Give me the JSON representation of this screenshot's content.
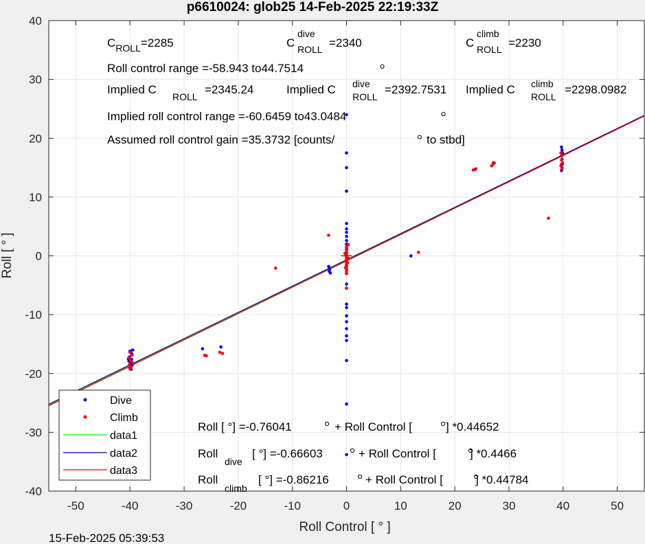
{
  "footer": {
    "timestamp": "15-Feb-2025 05:39:53"
  },
  "chart_data": {
    "type": "scatter",
    "title": "p6610024: glob25 14-Feb-2025 22:19:33Z",
    "xlabel": "Roll Control [ ° ]",
    "ylabel": "Roll [ ° ]",
    "xlim": [
      -55,
      55
    ],
    "ylim": [
      -40,
      40
    ],
    "xticks": [
      -50,
      -40,
      -30,
      -20,
      -10,
      0,
      10,
      20,
      30,
      40,
      50
    ],
    "yticks": [
      -40,
      -30,
      -20,
      -10,
      0,
      10,
      20,
      30,
      40
    ],
    "grid": true,
    "legend_placement": "bottom-left",
    "colors": {
      "dive": "#0000ff",
      "climb": "#ff0000",
      "data1": "#00ff00",
      "data2": "#0000aa",
      "data3": "#ff0000"
    },
    "annotations": {
      "c_roll": {
        "base": "C",
        "sub": "ROLL",
        "value": "=2285"
      },
      "c_roll_dive": {
        "base": "C",
        "sup": "dive",
        "sub": "ROLL",
        "value": "=2340"
      },
      "c_roll_climb": {
        "base": "C",
        "sup": "climb",
        "sub": "ROLL",
        "value": "=2230"
      },
      "roll_control_range": "Roll control range =-58.943 to44.7514",
      "implied_c_roll": {
        "prefix": "Implied C",
        "sub": "ROLL",
        "value": "=2345.24"
      },
      "implied_c_roll_dive": {
        "prefix": "Implied C",
        "sup": "dive",
        "sub": "ROLL",
        "value": "=2392.7531"
      },
      "implied_c_roll_climb": {
        "prefix": "Implied C",
        "sup": "climb",
        "sub": "ROLL",
        "value": "=2298.0982"
      },
      "implied_range": "Implied roll control range =-60.6459 to43.0484",
      "gain": {
        "text": "Assumed roll control gain =35.3732 [counts/",
        "tail": "to stbd]"
      },
      "fit_all": {
        "a": "Roll [ °] =-0.76041",
        "b": "+ Roll Control [",
        "c": "] *0.44652"
      },
      "fit_dive": {
        "a": "Roll",
        "sub": "dive",
        "b": "[ °] =-0.66603",
        "c": "+ Roll Control [",
        "d": "] *0.4466"
      },
      "fit_climb": {
        "a": "Roll",
        "sub": "climb",
        "b": "[ °] =-0.86216",
        "c": "+ Roll Control [",
        "d": "] *0.44784"
      }
    },
    "series": [
      {
        "name": "Dive",
        "kind": "points",
        "color": "#0000ff",
        "points": [
          [
            -40,
            -16.2
          ],
          [
            -39.8,
            -16.5
          ],
          [
            -39.6,
            -16.8
          ],
          [
            -40.1,
            -17.2
          ],
          [
            -39.7,
            -17.6
          ],
          [
            -40.2,
            -17.9
          ],
          [
            -39.9,
            -18.2
          ],
          [
            -39.6,
            -18.6
          ],
          [
            -40,
            -19
          ],
          [
            -39.8,
            -19.3
          ],
          [
            -39.5,
            -16
          ],
          [
            -40.3,
            -17.5
          ],
          [
            -26.6,
            -15.8
          ],
          [
            -23.2,
            -15.5
          ],
          [
            -3.3,
            -1.8
          ],
          [
            -3.1,
            -2.2
          ],
          [
            -3.2,
            -2.6
          ],
          [
            -3,
            -2.9
          ],
          [
            0,
            24
          ],
          [
            0,
            17.5
          ],
          [
            0,
            15
          ],
          [
            0,
            11
          ],
          [
            0,
            5.5
          ],
          [
            0,
            4.6
          ],
          [
            0,
            4.0
          ],
          [
            0,
            3.3
          ],
          [
            0,
            2.6
          ],
          [
            0,
            2.0
          ],
          [
            0,
            1.2
          ],
          [
            0,
            0.5
          ],
          [
            0,
            -0.3
          ],
          [
            0,
            -1.0
          ],
          [
            0,
            -1.6
          ],
          [
            0,
            -2.2
          ],
          [
            0,
            -3.0
          ],
          [
            0,
            -4.8
          ],
          [
            0,
            -5.5
          ],
          [
            0,
            -8.2
          ],
          [
            0,
            -8.8
          ],
          [
            0,
            -10.2
          ],
          [
            0,
            -11.2
          ],
          [
            0,
            -12.4
          ],
          [
            0,
            -13.6
          ],
          [
            0,
            -14.4
          ],
          [
            0,
            -17.8
          ],
          [
            0,
            -25.2
          ],
          [
            0,
            -33.8
          ],
          [
            11.9,
            0
          ],
          [
            39.7,
            18.5
          ],
          [
            39.8,
            18.0
          ],
          [
            39.9,
            17.5
          ],
          [
            39.7,
            17.0
          ],
          [
            39.8,
            16.4
          ],
          [
            39.9,
            15.6
          ],
          [
            39.8,
            15.0
          ],
          [
            39.7,
            14.5
          ],
          [
            23.7,
            14.7
          ],
          [
            27.1,
            15.8
          ]
        ]
      },
      {
        "name": "Climb",
        "kind": "points",
        "color": "#ff0000",
        "points": [
          [
            -40,
            -16.4
          ],
          [
            -39.7,
            -16.9
          ],
          [
            -40.2,
            -17.3
          ],
          [
            -39.9,
            -17.8
          ],
          [
            -39.6,
            -18.1
          ],
          [
            -40.1,
            -18.5
          ],
          [
            -39.8,
            -18.9
          ],
          [
            -40,
            -19.2
          ],
          [
            -26.2,
            -16.9
          ],
          [
            -25.9,
            -17.0
          ],
          [
            -23.4,
            -16.4
          ],
          [
            -22.9,
            -16.6
          ],
          [
            -13.1,
            -2.1
          ],
          [
            -3.3,
            3.5
          ],
          [
            0,
            1.5
          ],
          [
            0,
            1.0
          ],
          [
            0,
            0.6
          ],
          [
            0,
            0.2
          ],
          [
            0,
            -0.2
          ],
          [
            0,
            -0.6
          ],
          [
            0,
            -1.0
          ],
          [
            0,
            -1.4
          ],
          [
            0,
            -1.8
          ],
          [
            0,
            -2.2
          ],
          [
            0,
            -2.6
          ],
          [
            0,
            -3.0
          ],
          [
            0,
            -5.5
          ],
          [
            0.3,
            -0.4
          ],
          [
            -0.3,
            0.4
          ],
          [
            0.2,
            -1.2
          ],
          [
            -0.2,
            -2.0
          ],
          [
            0.3,
            1.9
          ],
          [
            13.3,
            0.6
          ],
          [
            23.4,
            14.6
          ],
          [
            23.9,
            14.8
          ],
          [
            26.8,
            15.3
          ],
          [
            27.1,
            15.6
          ],
          [
            27.3,
            15.8
          ],
          [
            37.3,
            6.4
          ],
          [
            39.6,
            17.5
          ],
          [
            39.8,
            17.0
          ],
          [
            39.7,
            16.3
          ],
          [
            39.9,
            15.8
          ],
          [
            39.6,
            15.3
          ],
          [
            39.8,
            14.8
          ],
          [
            39.7,
            15.6
          ]
        ]
      },
      {
        "name": "data1",
        "kind": "line",
        "color": "#00ff00",
        "intercept": -0.76041,
        "slope": 0.44652
      },
      {
        "name": "data2",
        "kind": "line",
        "color": "#0000aa",
        "intercept": -0.66603,
        "slope": 0.4466
      },
      {
        "name": "data3",
        "kind": "line",
        "color": "#ff0000",
        "intercept": -0.86216,
        "slope": 0.44784
      }
    ],
    "extra_markers": [
      [
        6.6,
        32.2
      ],
      [
        17.9,
        24.1
      ],
      [
        13.5,
        20.2
      ]
    ]
  }
}
